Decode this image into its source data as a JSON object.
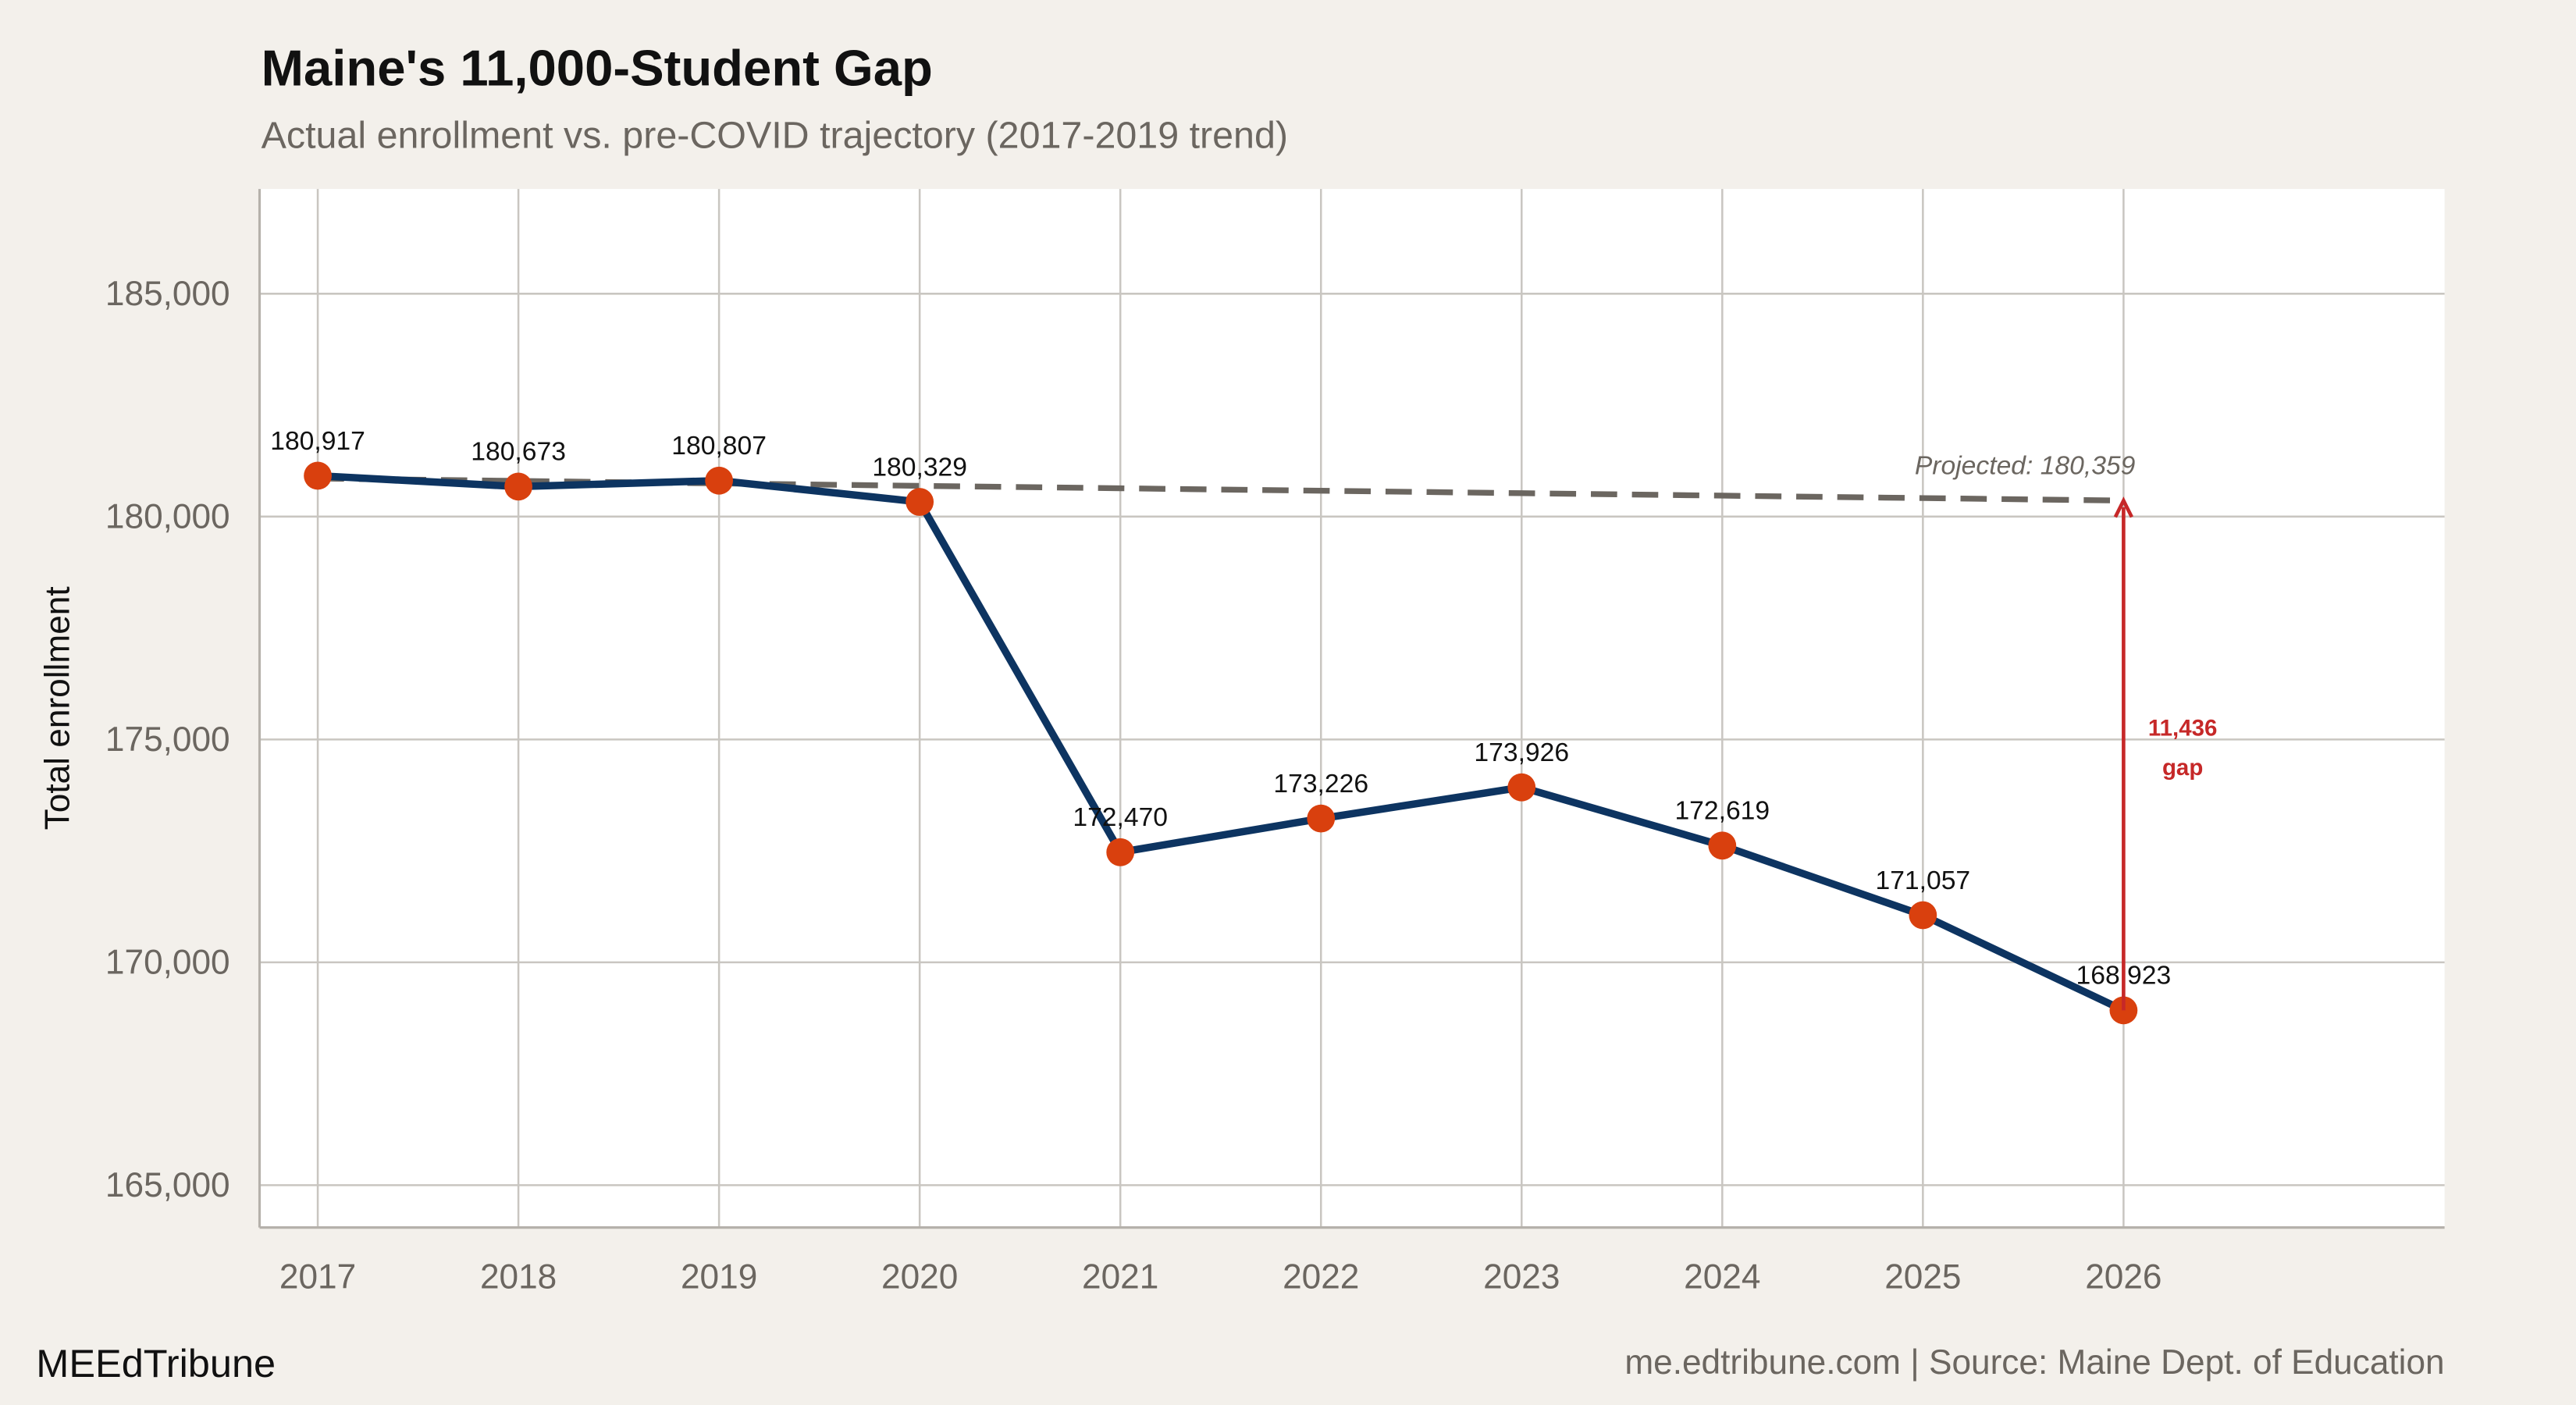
{
  "chart_data": {
    "type": "line",
    "title": "Maine's 11,000-Student Gap",
    "subtitle": "Actual enrollment vs. pre-COVID trajectory (2017-2019 trend)",
    "y_label": "Total enrollment",
    "x": [
      2017,
      2018,
      2019,
      2020,
      2021,
      2022,
      2023,
      2024,
      2025,
      2026
    ],
    "series": [
      {
        "color": "#0d3461",
        "marker_color": "#d9400e",
        "values": [
          180917,
          180673,
          180807,
          180329,
          172470,
          173226,
          173926,
          172619,
          171057,
          168923
        ],
        "value_labels": [
          "180,917",
          "180,673",
          "180,807",
          "180,329",
          "172,470",
          "173,226",
          "173,926",
          "172,619",
          "171,057",
          "168,923"
        ]
      },
      {
        "color": "#6b6660",
        "dashed": true,
        "values": [
          180855,
          180800,
          180745,
          180690,
          180635,
          180580,
          180525,
          180470,
          180415,
          180359
        ]
      }
    ],
    "xlim": [
      2016.71,
      2027.6
    ],
    "ylim": [
      164050,
      187350
    ],
    "xticks": [
      2017,
      2018,
      2019,
      2020,
      2021,
      2022,
      2023,
      2024,
      2025,
      2026
    ],
    "yticks": [
      {
        "value": 165000,
        "label": "165,000"
      },
      {
        "value": 170000,
        "label": "170,000"
      },
      {
        "value": 175000,
        "label": "175,000"
      },
      {
        "value": 180000,
        "label": "180,000"
      },
      {
        "value": 185000,
        "label": "185,000"
      }
    ],
    "grid": true,
    "annotations": {
      "projected": "Projected: 180,359",
      "gap_value": "11,436",
      "gap_word": "gap",
      "gap_color": "#c62828"
    },
    "footer_left": "MEEdTribune",
    "footer_right": "me.edtribune.com | Source: Maine Dept. of Education"
  }
}
